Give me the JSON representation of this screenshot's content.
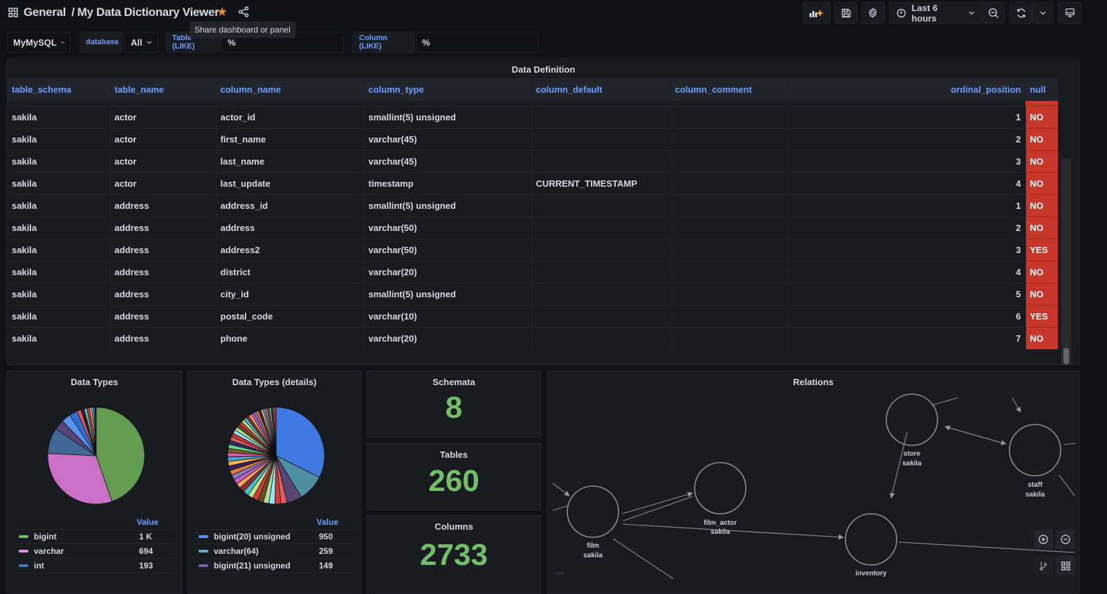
{
  "header": {
    "folder": "General",
    "separator": "/",
    "dashboard_title": "My Data Dictionary Viewer",
    "share_tooltip": "Share dashboard or panel",
    "time_range": "Last 6 hours",
    "icons": [
      "apps-icon",
      "star-icon",
      "share-icon",
      "add-panel-icon",
      "save-icon",
      "settings-icon",
      "clock-icon",
      "chevron-down-icon",
      "zoom-out-icon",
      "refresh-icon",
      "tv-icon"
    ]
  },
  "variables": {
    "datasource": "MyMySQL",
    "database_label": "database",
    "database_value": "All",
    "table_label": "Table (LIKE)",
    "table_value": "%",
    "column_label": "Column (LIKE)",
    "column_value": "%"
  },
  "data_definition": {
    "title": "Data Definition",
    "columns": [
      "table_schema",
      "table_name",
      "column_name",
      "column_type",
      "column_default",
      "column_comment",
      "ordinal_position",
      "null"
    ],
    "rows": [
      [
        "sakila",
        "actor",
        "actor_id",
        "smallint(5) unsigned",
        "",
        "",
        "1",
        "NO"
      ],
      [
        "sakila",
        "actor",
        "first_name",
        "varchar(45)",
        "",
        "",
        "2",
        "NO"
      ],
      [
        "sakila",
        "actor",
        "last_name",
        "varchar(45)",
        "",
        "",
        "3",
        "NO"
      ],
      [
        "sakila",
        "actor",
        "last_update",
        "timestamp",
        "CURRENT_TIMESTAMP",
        "",
        "4",
        "NO"
      ],
      [
        "sakila",
        "address",
        "address_id",
        "smallint(5) unsigned",
        "",
        "",
        "1",
        "NO"
      ],
      [
        "sakila",
        "address",
        "address",
        "varchar(50)",
        "",
        "",
        "2",
        "NO"
      ],
      [
        "sakila",
        "address",
        "address2",
        "varchar(50)",
        "",
        "",
        "3",
        "YES"
      ],
      [
        "sakila",
        "address",
        "district",
        "varchar(20)",
        "",
        "",
        "4",
        "NO"
      ],
      [
        "sakila",
        "address",
        "city_id",
        "smallint(5) unsigned",
        "",
        "",
        "5",
        "NO"
      ],
      [
        "sakila",
        "address",
        "postal_code",
        "varchar(10)",
        "",
        "",
        "6",
        "YES"
      ],
      [
        "sakila",
        "address",
        "phone",
        "varchar(20)",
        "",
        "",
        "7",
        "NO"
      ]
    ],
    "null_color": "#c9372c"
  },
  "data_types": {
    "title": "Data Types",
    "value_header": "Value",
    "legend": [
      {
        "name": "bigint",
        "value": "1 K",
        "color": "#73bf69"
      },
      {
        "name": "varchar",
        "value": "694",
        "color": "#e38fdd"
      },
      {
        "name": "int",
        "value": "193",
        "color": "#5794f2"
      }
    ],
    "slices": [
      {
        "v": 1000,
        "c": "#629e51"
      },
      {
        "v": 694,
        "c": "#ca71c7"
      },
      {
        "v": 193,
        "c": "#3f6896"
      },
      {
        "v": 75,
        "c": "#584477"
      },
      {
        "v": 70,
        "c": "#5794f2"
      },
      {
        "v": 60,
        "c": "#2f6ed8"
      },
      {
        "v": 30,
        "c": "#e05f5c"
      },
      {
        "v": 25,
        "c": "#4a1a1a"
      },
      {
        "v": 22,
        "c": "#45c2d4"
      },
      {
        "v": 20,
        "c": "#d43a3a"
      },
      {
        "v": 16,
        "c": "#f2b54f"
      },
      {
        "v": 14,
        "c": "#6ea3f2"
      },
      {
        "v": 10,
        "c": "#7a5fbf"
      },
      {
        "v": 8,
        "c": "#222"
      }
    ]
  },
  "data_types_details": {
    "title": "Data Types (details)",
    "value_header": "Value",
    "legend": [
      {
        "name": "bigint(20) unsigned",
        "value": "950",
        "color": "#5794f2"
      },
      {
        "name": "varchar(64)",
        "value": "259",
        "color": "#6ab0c4"
      },
      {
        "name": "bigint(21) unsigned",
        "value": "149",
        "color": "#7c64a8"
      }
    ]
  },
  "stats": {
    "schemata": {
      "label": "Schemata",
      "value": "8"
    },
    "tables": {
      "label": "Tables",
      "value": "260"
    },
    "columns": {
      "label": "Columns",
      "value": "2733"
    },
    "value_color": "#73bf69"
  },
  "relations": {
    "title": "Relations",
    "nodes": [
      {
        "name": "film",
        "schema": "sakila"
      },
      {
        "name": "film_actor",
        "schema": "sakila"
      },
      {
        "name": "store",
        "schema": "sakila"
      },
      {
        "name": "staff",
        "schema": "sakila"
      },
      {
        "name": "inventory",
        "schema": ""
      }
    ]
  }
}
